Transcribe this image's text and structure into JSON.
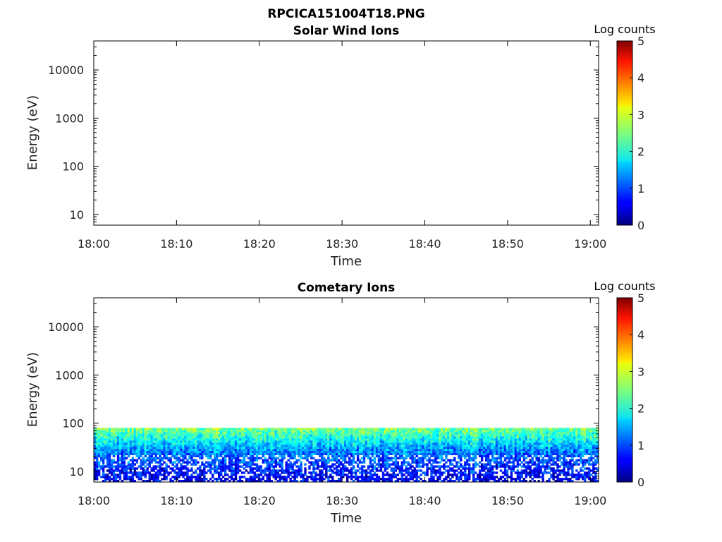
{
  "figure_title": "RPCICA151004T18.PNG",
  "chart_data": [
    {
      "type": "heatmap",
      "title": "Solar Wind Ions",
      "xlabel": "Time",
      "ylabel": "Energy (eV)",
      "x_range": [
        "18:00",
        "19:01"
      ],
      "x_ticks": [
        "18:00",
        "18:10",
        "18:20",
        "18:30",
        "18:40",
        "18:50",
        "19:00"
      ],
      "y_scale": "log",
      "y_range": [
        6,
        40000
      ],
      "y_ticks": [
        10,
        100,
        1000,
        10000
      ],
      "y_tick_labels": [
        "10",
        "100",
        "1000",
        "10000"
      ],
      "colorbar": {
        "label": "Log counts",
        "range": [
          0,
          5
        ],
        "ticks": [
          "0",
          "1",
          "2",
          "3",
          "4",
          "5"
        ],
        "colormap": "jet"
      },
      "data_summary": "no counts recorded (empty panel)"
    },
    {
      "type": "heatmap",
      "title": "Cometary Ions",
      "xlabel": "Time",
      "ylabel": "Energy (eV)",
      "x_range": [
        "18:00",
        "19:01"
      ],
      "x_ticks": [
        "18:00",
        "18:10",
        "18:20",
        "18:30",
        "18:40",
        "18:50",
        "19:00"
      ],
      "y_scale": "log",
      "y_range": [
        6,
        40000
      ],
      "y_ticks": [
        10,
        100,
        1000,
        10000
      ],
      "y_tick_labels": [
        "10",
        "100",
        "1000",
        "10000"
      ],
      "colorbar": {
        "label": "Log counts",
        "range": [
          0,
          5
        ],
        "ticks": [
          "0",
          "1",
          "2",
          "3",
          "4",
          "5"
        ],
        "colormap": "jet"
      },
      "data_summary": "continuous low-energy band from ~6 eV up to ~80 eV over the whole hour",
      "band_energy_max_ev": 80,
      "band_profile": [
        {
          "energy_ev": 80,
          "log_counts": 2.5
        },
        {
          "energy_ev": 60,
          "log_counts": 2.2
        },
        {
          "energy_ev": 45,
          "log_counts": 1.9
        },
        {
          "energy_ev": 30,
          "log_counts": 1.4
        },
        {
          "energy_ev": 20,
          "log_counts": 1.1
        },
        {
          "energy_ev": 12,
          "log_counts": 0.8
        },
        {
          "energy_ev": 6,
          "log_counts": 0.5
        }
      ]
    }
  ]
}
